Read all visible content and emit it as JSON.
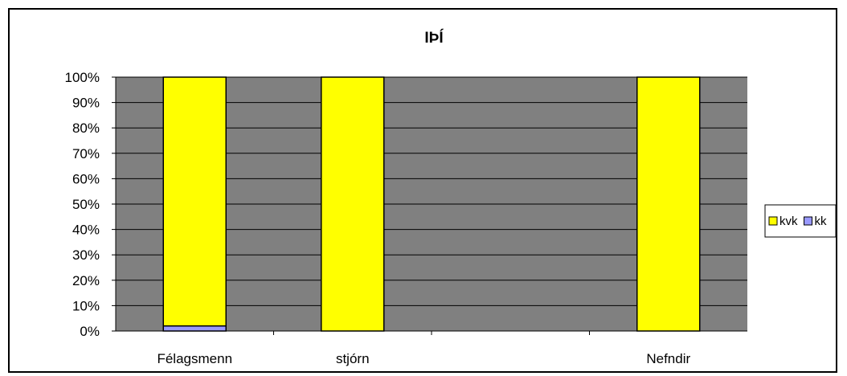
{
  "chart_data": {
    "type": "bar",
    "stacked": true,
    "percent_axis": true,
    "title": "IÞÍ",
    "categories": [
      "Félagsmenn",
      "stjórn",
      "",
      "Nefndir"
    ],
    "series": [
      {
        "name": "kk",
        "values": [
          2,
          0,
          0,
          0
        ],
        "color": "#9999ff"
      },
      {
        "name": "kvk",
        "values": [
          98,
          100,
          0,
          100
        ],
        "color": "#ffff00"
      }
    ],
    "ylim": [
      0,
      100
    ],
    "yticks": [
      "0%",
      "10%",
      "20%",
      "30%",
      "40%",
      "50%",
      "60%",
      "70%",
      "80%",
      "90%",
      "100%"
    ],
    "legend": {
      "position": "right",
      "order": [
        "kvk",
        "kk"
      ]
    },
    "plot_background": "#808080",
    "grid": true,
    "xlabel": "",
    "ylabel": ""
  }
}
